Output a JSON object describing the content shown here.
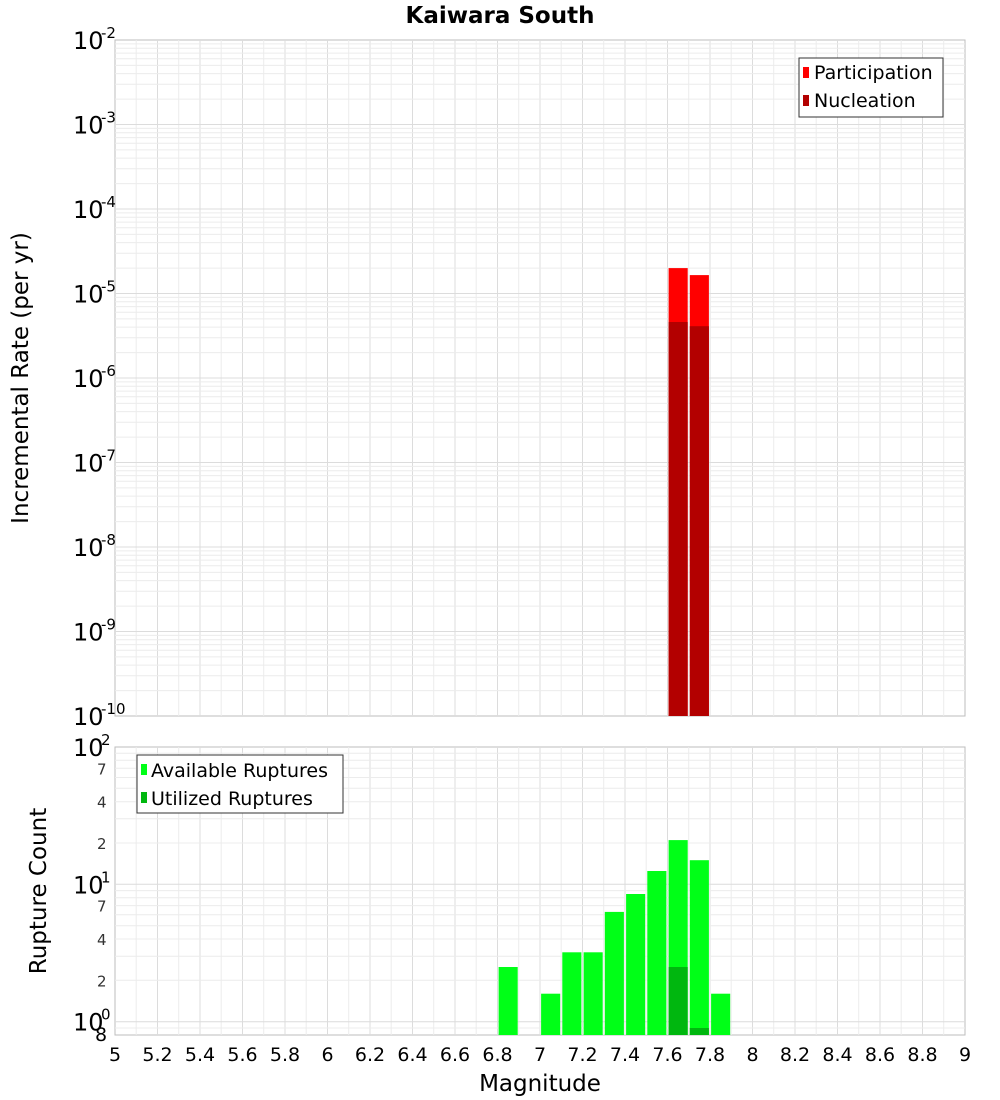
{
  "chart_data": [
    {
      "type": "bar",
      "title": "Kaiwara South",
      "xlabel": "Magnitude",
      "ylabel": "Incremental Rate (per yr)",
      "y_scale": "log",
      "xlim": [
        5,
        9
      ],
      "ylim": [
        1e-10,
        0.01
      ],
      "x_ticks": [
        "5",
        "5.2",
        "5.4",
        "5.6",
        "5.8",
        "6",
        "6.2",
        "6.4",
        "6.6",
        "6.8",
        "7",
        "7.2",
        "7.4",
        "7.6",
        "7.8",
        "8",
        "8.2",
        "8.4",
        "8.6",
        "8.8",
        "9"
      ],
      "y_tick_exponents": [
        "-2",
        "-3",
        "-4",
        "-5",
        "-6",
        "-7",
        "-8",
        "-9",
        "-10"
      ],
      "y_tick_base": "10",
      "grid": true,
      "legend_position": "top-right",
      "bar_width": 0.09,
      "series": [
        {
          "name": "Participation",
          "color": "#ff0000",
          "x": [
            7.65,
            7.75
          ],
          "values": [
            2e-05,
            1.65e-05
          ]
        },
        {
          "name": "Nucleation",
          "color": "#b30000",
          "x": [
            7.65,
            7.75
          ],
          "values": [
            4.6e-06,
            4.1e-06
          ]
        }
      ]
    },
    {
      "type": "bar",
      "xlabel": "Magnitude",
      "ylabel": "Rupture Count",
      "y_scale": "log",
      "xlim": [
        5,
        9
      ],
      "ylim": [
        0.8,
        100
      ],
      "y_major_ticks": [
        {
          "base": "10",
          "exp": "2"
        },
        {
          "base": "10",
          "exp": "1"
        },
        {
          "base": "10",
          "exp": "0"
        }
      ],
      "y_minor_ticks": [
        {
          "label": "7",
          "value": 70
        },
        {
          "label": "4",
          "value": 40
        },
        {
          "label": "2",
          "value": 20
        },
        {
          "label": "7",
          "value": 7
        },
        {
          "label": "4",
          "value": 4
        },
        {
          "label": "2",
          "value": 2
        },
        {
          "label": "8",
          "value": 0.8
        }
      ],
      "grid": true,
      "legend_position": "top-left",
      "bar_width": 0.09,
      "series": [
        {
          "name": "Available Ruptures",
          "color": "#00ff17",
          "x": [
            6.85,
            7.05,
            7.15,
            7.25,
            7.35,
            7.45,
            7.55,
            7.65,
            7.75,
            7.85
          ],
          "values": [
            2.5,
            1.6,
            3.2,
            3.2,
            6.3,
            8.5,
            12.5,
            21,
            15,
            1.6
          ]
        },
        {
          "name": "Utilized Ruptures",
          "color": "#00b70f",
          "x": [
            7.65,
            7.75
          ],
          "values": [
            2.5,
            0.9
          ]
        }
      ]
    }
  ]
}
